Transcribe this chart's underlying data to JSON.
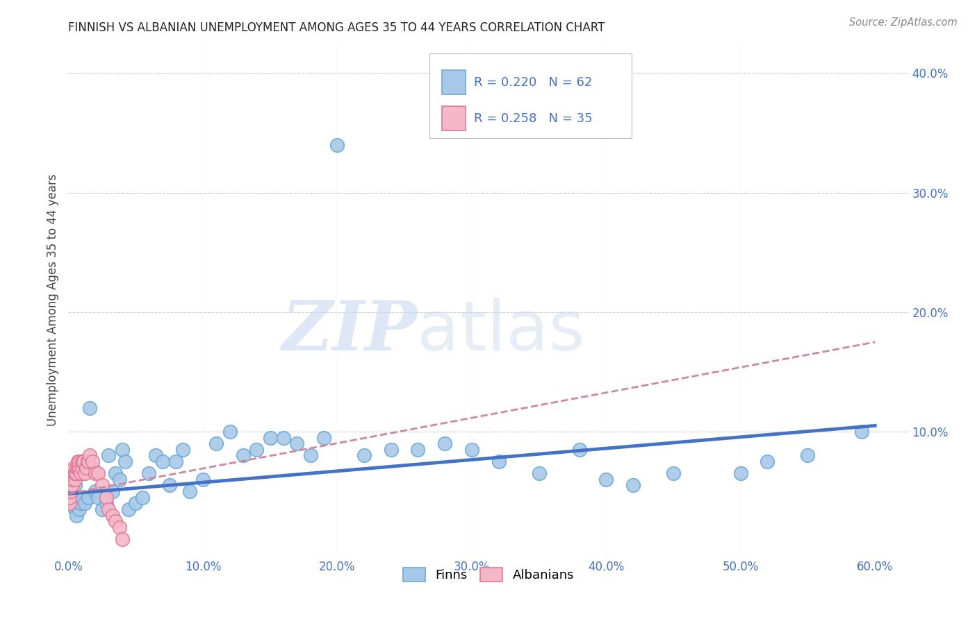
{
  "title": "FINNISH VS ALBANIAN UNEMPLOYMENT AMONG AGES 35 TO 44 YEARS CORRELATION CHART",
  "source": "Source: ZipAtlas.com",
  "ylabel": "Unemployment Among Ages 35 to 44 years",
  "xlim": [
    0.0,
    0.625
  ],
  "ylim": [
    -0.005,
    0.425
  ],
  "xticks": [
    0.0,
    0.1,
    0.2,
    0.3,
    0.4,
    0.5,
    0.6
  ],
  "yticks": [
    0.0,
    0.1,
    0.2,
    0.3,
    0.4
  ],
  "ytick_labels": [
    "",
    "10.0%",
    "20.0%",
    "30.0%",
    "40.0%"
  ],
  "xtick_labels": [
    "0.0%",
    "10.0%",
    "20.0%",
    "30.0%",
    "40.0%",
    "50.0%",
    "60.0%"
  ],
  "finn_color": "#a8c8e8",
  "finn_edge_color": "#6aaad4",
  "albanian_color": "#f5b8c8",
  "albanian_edge_color": "#e07898",
  "finn_line_color": "#4472c4",
  "albanian_line_color": "#d08898",
  "R_finn": 0.22,
  "N_finn": 62,
  "R_albanian": 0.258,
  "N_albanian": 35,
  "watermark_zip": "ZIP",
  "watermark_atlas": "atlas",
  "legend_finn": "Finns",
  "legend_albanian": "Albanians",
  "finns_x": [
    0.001,
    0.002,
    0.003,
    0.003,
    0.004,
    0.005,
    0.005,
    0.006,
    0.007,
    0.008,
    0.009,
    0.01,
    0.012,
    0.015,
    0.016,
    0.018,
    0.02,
    0.022,
    0.025,
    0.028,
    0.03,
    0.033,
    0.035,
    0.038,
    0.04,
    0.042,
    0.045,
    0.05,
    0.055,
    0.06,
    0.065,
    0.07,
    0.075,
    0.08,
    0.085,
    0.09,
    0.1,
    0.11,
    0.12,
    0.13,
    0.14,
    0.15,
    0.16,
    0.17,
    0.18,
    0.19,
    0.2,
    0.22,
    0.24,
    0.26,
    0.28,
    0.3,
    0.32,
    0.35,
    0.38,
    0.4,
    0.42,
    0.45,
    0.5,
    0.52,
    0.55,
    0.59
  ],
  "finns_y": [
    0.055,
    0.06,
    0.05,
    0.04,
    0.04,
    0.035,
    0.055,
    0.03,
    0.04,
    0.035,
    0.04,
    0.045,
    0.04,
    0.045,
    0.12,
    0.07,
    0.05,
    0.045,
    0.035,
    0.04,
    0.08,
    0.05,
    0.065,
    0.06,
    0.085,
    0.075,
    0.035,
    0.04,
    0.045,
    0.065,
    0.08,
    0.075,
    0.055,
    0.075,
    0.085,
    0.05,
    0.06,
    0.09,
    0.1,
    0.08,
    0.085,
    0.095,
    0.095,
    0.09,
    0.08,
    0.095,
    0.34,
    0.08,
    0.085,
    0.085,
    0.09,
    0.085,
    0.075,
    0.065,
    0.085,
    0.06,
    0.055,
    0.065,
    0.065,
    0.075,
    0.08,
    0.1
  ],
  "albanians_x": [
    0.001,
    0.001,
    0.002,
    0.002,
    0.003,
    0.003,
    0.004,
    0.004,
    0.005,
    0.005,
    0.006,
    0.006,
    0.007,
    0.007,
    0.008,
    0.008,
    0.009,
    0.01,
    0.01,
    0.011,
    0.012,
    0.013,
    0.014,
    0.015,
    0.016,
    0.018,
    0.02,
    0.022,
    0.025,
    0.028,
    0.03,
    0.033,
    0.035,
    0.038,
    0.04
  ],
  "albanians_y": [
    0.04,
    0.045,
    0.05,
    0.055,
    0.055,
    0.06,
    0.065,
    0.07,
    0.06,
    0.065,
    0.065,
    0.07,
    0.07,
    0.075,
    0.07,
    0.075,
    0.065,
    0.07,
    0.075,
    0.075,
    0.065,
    0.07,
    0.075,
    0.075,
    0.08,
    0.075,
    0.065,
    0.065,
    0.055,
    0.045,
    0.035,
    0.03,
    0.025,
    0.02,
    0.01
  ],
  "finn_trendline_x": [
    0.0,
    0.6
  ],
  "finn_trendline_y": [
    0.048,
    0.105
  ],
  "albanian_trendline_x": [
    0.0,
    0.6
  ],
  "albanian_trendline_y": [
    0.048,
    0.175
  ]
}
